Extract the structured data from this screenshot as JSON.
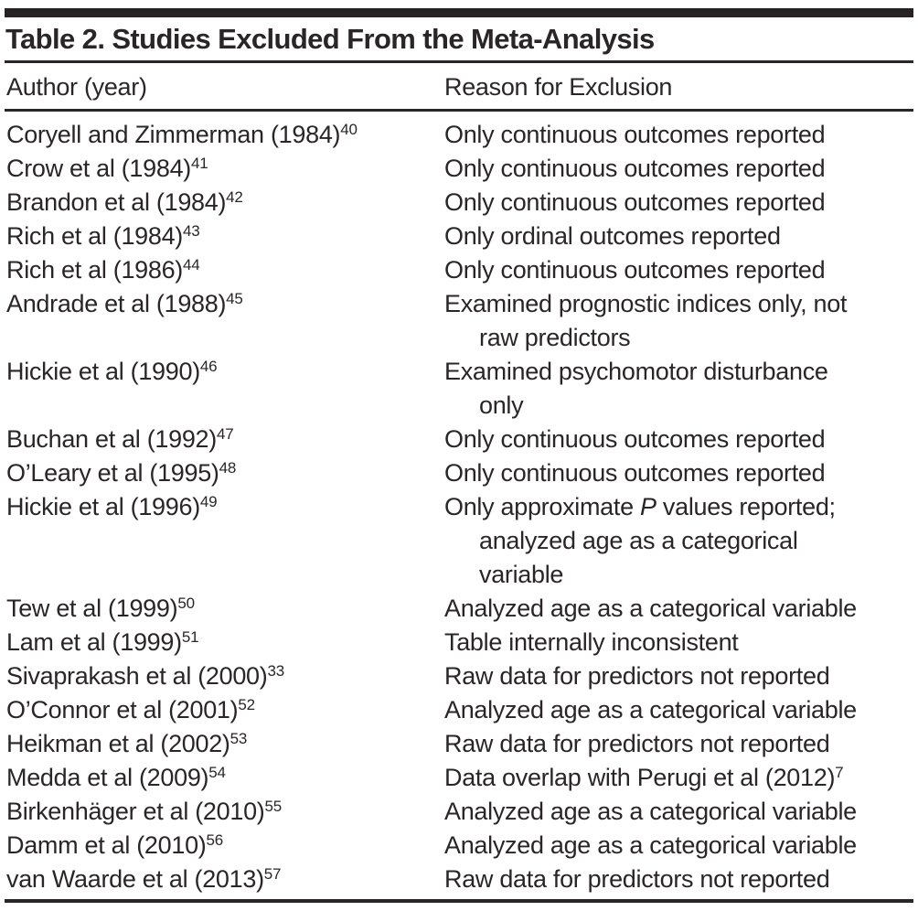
{
  "table": {
    "title": "Table 2. Studies Excluded From the Meta-Analysis",
    "columns": [
      "Author (year)",
      "Reason for Exclusion"
    ],
    "colors": {
      "text": "#2a2627",
      "rule": "#2a2627",
      "top_bar": "#262223",
      "background": "#ffffff"
    },
    "rows": [
      {
        "author": "Coryell and Zimmerman (1984)",
        "ref": "40",
        "reason_lines": [
          "Only continuous outcomes reported"
        ]
      },
      {
        "author": "Crow et al (1984)",
        "ref": "41",
        "reason_lines": [
          "Only continuous outcomes reported"
        ]
      },
      {
        "author": "Brandon et al (1984)",
        "ref": "42",
        "reason_lines": [
          "Only continuous outcomes reported"
        ]
      },
      {
        "author": "Rich et al (1984)",
        "ref": "43",
        "reason_lines": [
          "Only ordinal outcomes reported"
        ]
      },
      {
        "author": "Rich et al (1986)",
        "ref": "44",
        "reason_lines": [
          "Only continuous outcomes reported"
        ]
      },
      {
        "author": "Andrade et al (1988)",
        "ref": "45",
        "reason_lines": [
          "Examined prognostic indices only, not",
          "raw predictors"
        ]
      },
      {
        "author": "Hickie et al (1990)",
        "ref": "46",
        "reason_lines": [
          "Examined psychomotor disturbance",
          "only"
        ]
      },
      {
        "author": "Buchan et al (1992)",
        "ref": "47",
        "reason_lines": [
          "Only continuous outcomes reported"
        ]
      },
      {
        "author": "O’Leary et al (1995)",
        "ref": "48",
        "reason_lines": [
          "Only continuous outcomes reported"
        ]
      },
      {
        "author": "Hickie et al (1996)",
        "ref": "49",
        "reason_lines": [
          [
            {
              "t": "Only approximate "
            },
            {
              "t": "P",
              "italic": true
            },
            {
              "t": " values reported;"
            }
          ],
          "analyzed age as a categorical",
          "variable"
        ]
      },
      {
        "author": "Tew et al (1999)",
        "ref": "50",
        "reason_lines": [
          "Analyzed age as a categorical variable"
        ]
      },
      {
        "author": "Lam et al (1999)",
        "ref": "51",
        "reason_lines": [
          "Table internally inconsistent"
        ]
      },
      {
        "author": "Sivaprakash et al (2000)",
        "ref": "33",
        "reason_lines": [
          "Raw data for predictors not reported"
        ]
      },
      {
        "author": "O’Connor et al (2001)",
        "ref": "52",
        "reason_lines": [
          "Analyzed age as a categorical variable"
        ]
      },
      {
        "author": "Heikman et al (2002)",
        "ref": "53",
        "reason_lines": [
          "Raw data for predictors not reported"
        ]
      },
      {
        "author": "Medda et al (2009)",
        "ref": "54",
        "reason_lines": [
          [
            {
              "t": "Data overlap with Perugi et al (2012)"
            },
            {
              "t": "7",
              "sup": true
            }
          ]
        ]
      },
      {
        "author": "Birkenhäger et al (2010)",
        "ref": "55",
        "reason_lines": [
          "Analyzed age as a categorical variable"
        ]
      },
      {
        "author": "Damm et al (2010)",
        "ref": "56",
        "reason_lines": [
          "Analyzed age as a categorical variable"
        ]
      },
      {
        "author": "van Waarde et al (2013)",
        "ref": "57",
        "reason_lines": [
          "Raw data for predictors not reported"
        ]
      }
    ]
  }
}
